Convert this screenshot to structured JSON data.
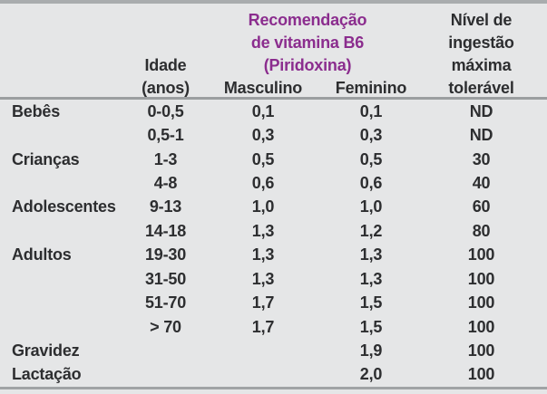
{
  "table": {
    "header": {
      "age": {
        "line1": "Idade",
        "line2": "(anos)"
      },
      "span_title": {
        "line1": "Recomendação",
        "line2": "de vitamina B6",
        "line3": "(Piridoxina)"
      },
      "masculino": "Masculino",
      "feminino": "Feminino",
      "tolerable": {
        "line1": "Nível de",
        "line2": "ingestão",
        "line3": "máxima",
        "line4": "tolerável"
      }
    },
    "rows": [
      {
        "group": "Bebês",
        "idade": "0-0,5",
        "masculino": "0,1",
        "feminino": "0,1",
        "tolerable": "ND"
      },
      {
        "group": "",
        "idade": "0,5-1",
        "masculino": "0,3",
        "feminino": "0,3",
        "tolerable": "ND"
      },
      {
        "group": "Crianças",
        "idade": "1-3",
        "masculino": "0,5",
        "feminino": "0,5",
        "tolerable": "30"
      },
      {
        "group": "",
        "idade": "4-8",
        "masculino": "0,6",
        "feminino": "0,6",
        "tolerable": "40"
      },
      {
        "group": "Adolescentes",
        "idade": "9-13",
        "masculino": "1,0",
        "feminino": "1,0",
        "tolerable": "60"
      },
      {
        "group": "",
        "idade": "14-18",
        "masculino": "1,3",
        "feminino": "1,2",
        "tolerable": "80"
      },
      {
        "group": "Adultos",
        "idade": "19-30",
        "masculino": "1,3",
        "feminino": "1,3",
        "tolerable": "100"
      },
      {
        "group": "",
        "idade": "31-50",
        "masculino": "1,3",
        "feminino": "1,3",
        "tolerable": "100"
      },
      {
        "group": "",
        "idade": "51-70",
        "masculino": "1,7",
        "feminino": "1,5",
        "tolerable": "100"
      },
      {
        "group": "",
        "idade": "> 70",
        "masculino": "1,7",
        "feminino": "1,5",
        "tolerable": "100"
      },
      {
        "group": "Gravidez",
        "idade": "",
        "masculino": "",
        "feminino": "1,9",
        "tolerable": "100"
      },
      {
        "group": "Lactação",
        "idade": "",
        "masculino": "",
        "feminino": "2,0",
        "tolerable": "100"
      }
    ],
    "colors": {
      "accent_purple": "#8b2d8e",
      "text": "#2d2e30",
      "background": "#e5e6e7",
      "rule_gray": "#a0a3a5"
    }
  }
}
